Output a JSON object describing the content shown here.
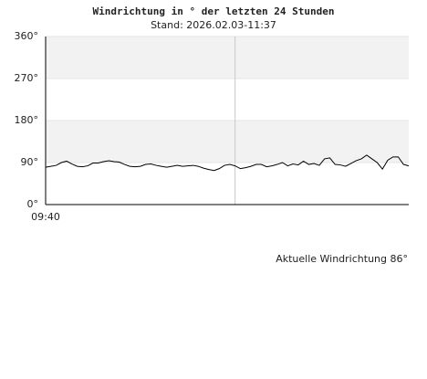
{
  "chart_data": {
    "type": "line",
    "title": "Windrichtung in ° der letzten 24 Stunden",
    "subtitle": "Stand: 2026.02.03-11:37",
    "annotation": "Aktuelle Windrichtung 86°",
    "x": [
      0,
      1,
      2,
      3,
      4,
      5,
      6,
      7,
      8,
      9,
      10,
      11,
      12,
      13,
      14,
      15,
      16,
      17,
      18,
      19,
      20,
      21,
      22,
      23,
      24,
      25,
      26,
      27,
      28,
      29,
      30,
      31,
      32,
      33,
      34,
      35,
      36,
      37,
      38,
      39,
      40,
      41,
      42,
      43,
      44,
      45,
      46,
      47,
      48,
      49,
      50,
      51,
      52,
      53,
      54,
      55,
      56,
      57,
      58,
      59,
      60,
      61,
      62,
      63,
      64,
      65,
      66,
      67,
      68,
      69
    ],
    "series": [
      {
        "name": "Windrichtung",
        "color": "#000000",
        "values": [
          80,
          82,
          84,
          90,
          93,
          87,
          82,
          81,
          83,
          89,
          89,
          92,
          94,
          92,
          91,
          86,
          82,
          81,
          82,
          86,
          87,
          84,
          82,
          80,
          82,
          84,
          82,
          83,
          84,
          82,
          78,
          75,
          73,
          77,
          84,
          86,
          83,
          77,
          79,
          82,
          86,
          86,
          81,
          83,
          86,
          90,
          83,
          87,
          85,
          93,
          86,
          88,
          84,
          98,
          100,
          86,
          85,
          82,
          88,
          94,
          98,
          106,
          98,
          90,
          76,
          95,
          102,
          102,
          86,
          83
        ]
      }
    ],
    "xlim": [
      0,
      69
    ],
    "xticks": [
      {
        "value": 0,
        "label": "09:40"
      },
      {
        "value": 36,
        "label": null
      }
    ],
    "ylim": [
      0,
      360
    ],
    "yticks": [
      {
        "value": 0,
        "label": "0°"
      },
      {
        "value": 90,
        "label": "90°"
      },
      {
        "value": 180,
        "label": "180°"
      },
      {
        "value": 270,
        "label": "270°"
      },
      {
        "value": 360,
        "label": "360°"
      }
    ],
    "bands": true,
    "grid": true
  }
}
